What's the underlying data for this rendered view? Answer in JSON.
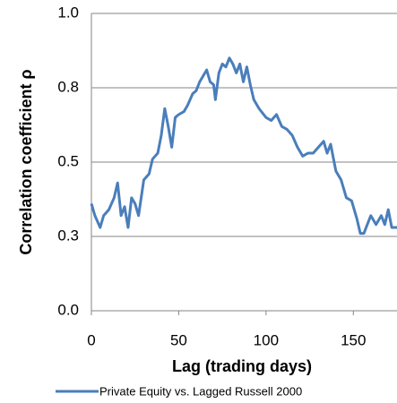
{
  "chart_data": {
    "type": "line",
    "x": [
      0,
      2,
      5,
      7,
      10,
      13,
      15,
      17,
      19,
      21,
      23,
      25,
      27,
      30,
      33,
      35,
      38,
      40,
      42,
      44,
      46,
      48,
      50,
      53,
      55,
      58,
      60,
      62,
      64,
      66,
      68,
      70,
      71,
      73,
      75,
      77,
      79,
      81,
      83,
      85,
      87,
      89,
      91,
      93,
      96,
      100,
      103,
      106,
      109,
      112,
      115,
      118,
      121,
      124,
      127,
      130,
      133,
      135,
      137,
      140,
      143,
      146,
      149,
      152,
      154,
      156,
      158,
      160,
      163,
      166,
      168,
      170,
      172,
      175
    ],
    "series": [
      {
        "name": "Private Equity vs. Lagged Russell 2000",
        "color": "#4a7ebb",
        "values": [
          0.36,
          0.32,
          0.28,
          0.32,
          0.34,
          0.38,
          0.43,
          0.32,
          0.35,
          0.28,
          0.38,
          0.36,
          0.32,
          0.44,
          0.46,
          0.51,
          0.53,
          0.59,
          0.68,
          0.62,
          0.55,
          0.65,
          0.66,
          0.67,
          0.69,
          0.73,
          0.74,
          0.77,
          0.79,
          0.81,
          0.77,
          0.76,
          0.71,
          0.8,
          0.83,
          0.82,
          0.85,
          0.83,
          0.8,
          0.83,
          0.77,
          0.82,
          0.76,
          0.71,
          0.68,
          0.65,
          0.64,
          0.66,
          0.62,
          0.61,
          0.59,
          0.55,
          0.52,
          0.53,
          0.53,
          0.55,
          0.57,
          0.53,
          0.56,
          0.47,
          0.44,
          0.38,
          0.37,
          0.31,
          0.26,
          0.26,
          0.29,
          0.32,
          0.29,
          0.32,
          0.29,
          0.34,
          0.28,
          0.28
        ]
      }
    ],
    "xlabel": "Lag (trading days)",
    "ylabel": "Correlation coefficient ρ",
    "xlim": [
      0,
      175
    ],
    "xticks": [
      0,
      50,
      100,
      150
    ],
    "ylim": [
      0,
      1
    ],
    "yticks": [
      {
        "value": 0,
        "label": "0.0"
      },
      {
        "value": 0.25,
        "label": "0.3"
      },
      {
        "value": 0.5,
        "label": "0.5"
      },
      {
        "value": 0.75,
        "label": "0.8"
      },
      {
        "value": 1,
        "label": "1.0"
      }
    ],
    "grid": true,
    "legend": "bottom"
  }
}
